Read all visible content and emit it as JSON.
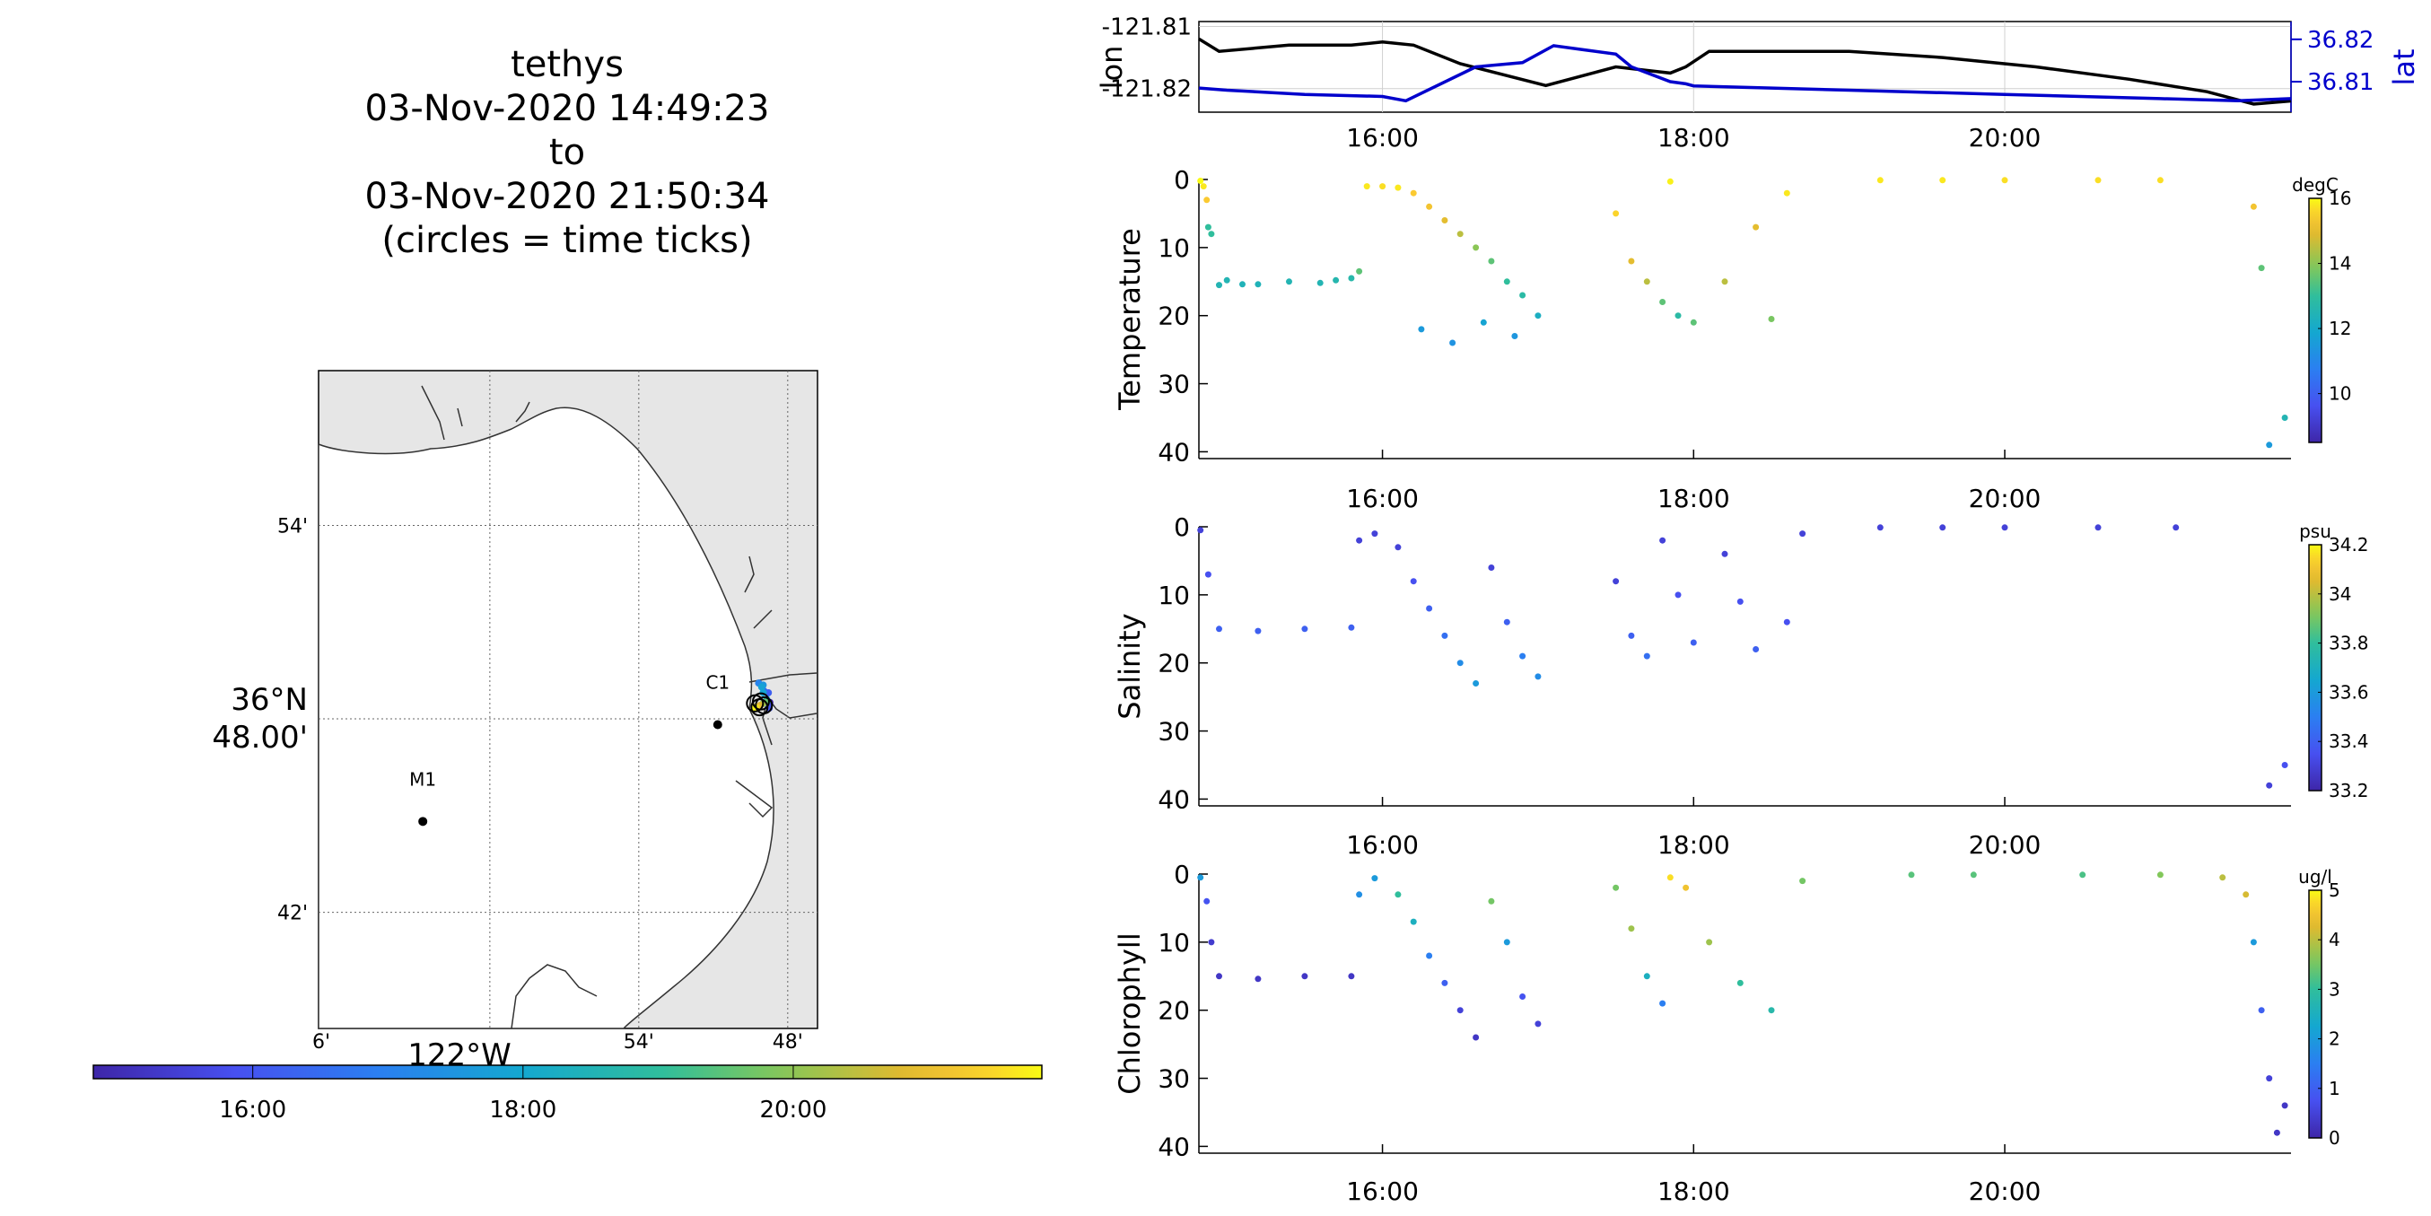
{
  "figure": {
    "title_lines": [
      "tethys",
      "03-Nov-2020 14:49:23",
      "to",
      "03-Nov-2020 21:50:34",
      "(circles = time ticks)"
    ]
  },
  "map": {
    "lat_tick_labels": [
      "54'",
      "36°N",
      "48.00'",
      "42'"
    ],
    "lon_tick_labels": [
      "6'",
      "122°W",
      "54'",
      "48'"
    ],
    "stations": [
      {
        "name": "M1",
        "lon": -122.045,
        "lat": 36.747
      },
      {
        "name": "C1",
        "lon": -121.847,
        "lat": 36.797
      }
    ],
    "coast_color": "#333333",
    "land_color": "#e6e6e6"
  },
  "time_colorbar": {
    "tick_labels": [
      "16:00",
      "18:00",
      "20:00"
    ],
    "range_hours": [
      14.82,
      21.84
    ]
  },
  "chart_data": [
    {
      "type": "line",
      "title": "",
      "xlabel": "",
      "ylabel": "lon",
      "ylabel_right": "lat",
      "x_unit": "hour of 03-Nov-2020",
      "xlim": [
        14.82,
        21.84
      ],
      "x_tick_labels": [
        "16:00",
        "18:00",
        "20:00"
      ],
      "y_tick_labels": [
        "-121.81",
        "-121.82"
      ],
      "y_right_tick_labels": [
        "36.82",
        "36.81"
      ],
      "ylim": [
        -121.8238,
        -121.8092
      ],
      "ylim_right": [
        36.8028,
        36.8242
      ],
      "series": [
        {
          "axis": "left",
          "color": "#000000",
          "x": [
            14.82,
            14.95,
            15.4,
            15.8,
            16.0,
            16.2,
            16.5,
            17.05,
            17.5,
            17.85,
            17.95,
            18.1,
            18.3,
            19.0,
            19.6,
            20.2,
            20.8,
            21.3,
            21.6,
            21.84
          ],
          "y": [
            -121.812,
            -121.814,
            -121.813,
            -121.813,
            -121.8125,
            -121.813,
            -121.816,
            -121.8195,
            -121.8165,
            -121.8175,
            -121.8165,
            -121.814,
            -121.814,
            -121.814,
            -121.815,
            -121.8165,
            -121.8185,
            -121.8205,
            -121.8225,
            -121.822
          ]
        },
        {
          "axis": "right",
          "color": "#0000cc",
          "x": [
            14.82,
            15.0,
            15.5,
            16.0,
            16.15,
            16.6,
            16.9,
            17.1,
            17.3,
            17.5,
            17.6,
            17.85,
            17.95,
            18.0,
            18.5,
            19.0,
            20.0,
            21.0,
            21.5,
            21.84
          ],
          "y": [
            36.8085,
            36.808,
            36.807,
            36.8065,
            36.8055,
            36.8135,
            36.8145,
            36.8185,
            36.8175,
            36.8165,
            36.8135,
            36.81,
            36.8095,
            36.809,
            36.8085,
            36.808,
            36.807,
            36.806,
            36.8055,
            36.806
          ]
        }
      ]
    },
    {
      "type": "scatter",
      "title": "",
      "xlabel": "",
      "ylabel": "Temperature",
      "colorbar_label": "degC",
      "colorbar_ticks": [
        "16",
        "14",
        "12",
        "10"
      ],
      "clim": [
        8.5,
        16
      ],
      "ylim": [
        41,
        0
      ],
      "xlim": [
        14.82,
        21.84
      ],
      "x_tick_labels": [
        "16:00",
        "18:00",
        "20:00"
      ],
      "y_tick_labels": [
        "0",
        "10",
        "20",
        "30",
        "40"
      ],
      "points": [
        [
          14.83,
          0.2,
          16
        ],
        [
          14.85,
          1.0,
          15.8
        ],
        [
          14.87,
          3,
          15.5
        ],
        [
          14.88,
          7,
          13
        ],
        [
          14.9,
          8,
          13
        ],
        [
          14.95,
          15.5,
          12.5
        ],
        [
          15.0,
          14.8,
          12.5
        ],
        [
          15.1,
          15.4,
          12.4
        ],
        [
          15.2,
          15.4,
          12.4
        ],
        [
          15.4,
          15.0,
          12.5
        ],
        [
          15.6,
          15.2,
          12.5
        ],
        [
          15.7,
          14.8,
          12.6
        ],
        [
          15.8,
          14.5,
          12.7
        ],
        [
          15.85,
          13.5,
          13.5
        ],
        [
          15.9,
          1,
          15.8
        ],
        [
          16.0,
          1,
          15.7
        ],
        [
          16.1,
          1.2,
          15.8
        ],
        [
          16.2,
          2,
          15.5
        ],
        [
          16.3,
          4,
          15.3
        ],
        [
          16.4,
          6,
          15
        ],
        [
          16.5,
          8,
          14.5
        ],
        [
          16.6,
          10,
          14
        ],
        [
          16.7,
          12,
          13.5
        ],
        [
          16.8,
          15,
          13
        ],
        [
          16.9,
          17,
          12.8
        ],
        [
          17.0,
          20,
          12.2
        ],
        [
          16.25,
          22,
          11.5
        ],
        [
          16.45,
          24,
          11.3
        ],
        [
          16.65,
          21,
          11.8
        ],
        [
          16.85,
          23,
          11.4
        ],
        [
          17.5,
          5,
          15.6
        ],
        [
          17.6,
          12,
          15
        ],
        [
          17.7,
          15,
          14.5
        ],
        [
          17.8,
          18,
          13.5
        ],
        [
          17.9,
          20,
          12.8
        ],
        [
          17.85,
          0.3,
          15.9
        ],
        [
          18.0,
          21,
          13.5
        ],
        [
          18.2,
          15,
          14.5
        ],
        [
          18.4,
          7,
          15
        ],
        [
          18.5,
          20.5,
          13.8
        ],
        [
          18.6,
          2,
          15.8
        ],
        [
          19.2,
          0.1,
          15.8
        ],
        [
          19.6,
          0.1,
          15.8
        ],
        [
          20.0,
          0.1,
          15.7
        ],
        [
          20.6,
          0.1,
          15.7
        ],
        [
          21.0,
          0.1,
          15.7
        ],
        [
          21.6,
          4,
          15.3
        ],
        [
          21.65,
          13,
          13.5
        ],
        [
          21.7,
          39,
          11.5
        ],
        [
          21.8,
          35,
          12.5
        ]
      ]
    },
    {
      "type": "scatter",
      "title": "",
      "xlabel": "",
      "ylabel": "Salinity",
      "colorbar_label": "psu",
      "colorbar_ticks": [
        "34.2",
        "34",
        "33.8",
        "33.6",
        "33.4",
        "33.2"
      ],
      "clim": [
        33.2,
        34.2
      ],
      "ylim": [
        41,
        0
      ],
      "xlim": [
        14.82,
        21.84
      ],
      "x_tick_labels": [
        "16:00",
        "18:00",
        "20:00"
      ],
      "y_tick_labels": [
        "0",
        "10",
        "20",
        "30",
        "40"
      ],
      "points": [
        [
          14.83,
          0.5,
          33.3
        ],
        [
          14.88,
          7,
          33.35
        ],
        [
          14.95,
          15,
          33.4
        ],
        [
          15.2,
          15.3,
          33.4
        ],
        [
          15.5,
          15.0,
          33.4
        ],
        [
          15.8,
          14.8,
          33.4
        ],
        [
          15.85,
          2,
          33.3
        ],
        [
          15.95,
          1,
          33.3
        ],
        [
          16.1,
          3,
          33.3
        ],
        [
          16.2,
          8,
          33.35
        ],
        [
          16.3,
          12,
          33.4
        ],
        [
          16.4,
          16,
          33.45
        ],
        [
          16.5,
          20,
          33.55
        ],
        [
          16.6,
          23,
          33.6
        ],
        [
          16.7,
          6,
          33.3
        ],
        [
          16.8,
          14,
          33.4
        ],
        [
          16.9,
          19,
          33.5
        ],
        [
          17.0,
          22,
          33.55
        ],
        [
          17.5,
          8,
          33.3
        ],
        [
          17.6,
          16,
          33.4
        ],
        [
          17.7,
          19,
          33.45
        ],
        [
          17.8,
          2,
          33.3
        ],
        [
          17.9,
          10,
          33.35
        ],
        [
          18.0,
          17,
          33.4
        ],
        [
          18.2,
          4,
          33.3
        ],
        [
          18.3,
          11,
          33.35
        ],
        [
          18.4,
          18,
          33.4
        ],
        [
          18.6,
          14,
          33.35
        ],
        [
          18.7,
          1,
          33.3
        ],
        [
          19.2,
          0.1,
          33.3
        ],
        [
          19.6,
          0.1,
          33.3
        ],
        [
          20.0,
          0.1,
          33.3
        ],
        [
          20.6,
          0.1,
          33.3
        ],
        [
          21.1,
          0.1,
          33.3
        ],
        [
          21.7,
          38,
          33.3
        ],
        [
          21.8,
          35,
          33.35
        ]
      ]
    },
    {
      "type": "scatter",
      "title": "",
      "xlabel": "",
      "ylabel": "Chlorophyll",
      "colorbar_label": "ug/l",
      "colorbar_ticks": [
        "5",
        "4",
        "3",
        "2",
        "1",
        "0"
      ],
      "clim": [
        0,
        5
      ],
      "ylim": [
        41,
        0
      ],
      "xlim": [
        14.82,
        21.84
      ],
      "x_tick_labels": [
        "16:00",
        "18:00",
        "20:00"
      ],
      "y_tick_labels": [
        "0",
        "10",
        "20",
        "30",
        "40"
      ],
      "points": [
        [
          14.83,
          0.5,
          2.0
        ],
        [
          14.87,
          4,
          0.8
        ],
        [
          14.9,
          10,
          0.4
        ],
        [
          14.95,
          15,
          0.3
        ],
        [
          15.2,
          15.4,
          0.3
        ],
        [
          15.5,
          15,
          0.3
        ],
        [
          15.8,
          15,
          0.3
        ],
        [
          15.85,
          3,
          1.8
        ],
        [
          15.95,
          0.6,
          2.0
        ],
        [
          16.1,
          3,
          3.0
        ],
        [
          16.2,
          7,
          2.5
        ],
        [
          16.3,
          12,
          1.5
        ],
        [
          16.4,
          16,
          1.0
        ],
        [
          16.5,
          20,
          0.5
        ],
        [
          16.6,
          24,
          0.3
        ],
        [
          16.7,
          4,
          3.5
        ],
        [
          16.8,
          10,
          2.0
        ],
        [
          16.9,
          18,
          0.8
        ],
        [
          17.0,
          22,
          0.5
        ],
        [
          17.5,
          2,
          3.5
        ],
        [
          17.6,
          8,
          3.8
        ],
        [
          17.7,
          15,
          2.5
        ],
        [
          17.8,
          19,
          1.5
        ],
        [
          17.85,
          0.5,
          4.8
        ],
        [
          17.95,
          2,
          4.5
        ],
        [
          18.1,
          10,
          3.8
        ],
        [
          18.3,
          16,
          3.0
        ],
        [
          18.5,
          20,
          2.8
        ],
        [
          18.7,
          1,
          3.5
        ],
        [
          19.4,
          0.1,
          3.3
        ],
        [
          19.8,
          0.1,
          3.3
        ],
        [
          20.5,
          0.1,
          3.2
        ],
        [
          21.0,
          0.1,
          3.6
        ],
        [
          21.4,
          0.5,
          4.0
        ],
        [
          21.55,
          3,
          4.2
        ],
        [
          21.6,
          10,
          2.0
        ],
        [
          21.65,
          20,
          1.0
        ],
        [
          21.7,
          30,
          0.5
        ],
        [
          21.75,
          38,
          0.3
        ],
        [
          21.8,
          34,
          0.3
        ]
      ]
    }
  ]
}
